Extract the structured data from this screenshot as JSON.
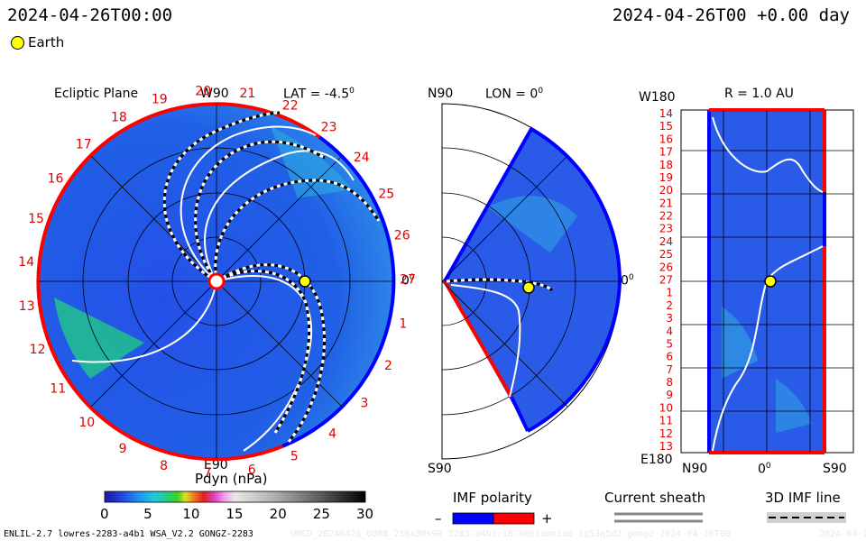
{
  "header": {
    "left_time": "2024-04-26T00:00",
    "right_time": "2024-04-26T00 +0.00 day",
    "legend_earth": "Earth"
  },
  "panels": {
    "ecliptic": {
      "title": "Ecliptic Plane",
      "lat": "LAT = -4.5",
      "deg_sup": "0",
      "top_label": "W90",
      "bottom_label": "E90",
      "zero_label": "0",
      "sector_numbers": [
        "1",
        "2",
        "3",
        "4",
        "5",
        "6",
        "7",
        "8",
        "9",
        "10",
        "11",
        "12",
        "13",
        "14",
        "15",
        "16",
        "17",
        "18",
        "19",
        "20",
        "21",
        "22",
        "23",
        "24",
        "25",
        "26",
        "27"
      ]
    },
    "meridional": {
      "top_left": "N90",
      "lon": "LON = 0",
      "deg_sup": "0",
      "bottom_left": "S90",
      "zero_label": "0"
    },
    "rplane": {
      "top_left": "W180",
      "title": "R = 1.0 AU",
      "bottom_left": "E180",
      "x_labels": [
        "N90",
        "0",
        "S90"
      ],
      "deg_sup": "0",
      "y_labels": [
        "14",
        "15",
        "16",
        "17",
        "18",
        "19",
        "20",
        "21",
        "22",
        "23",
        "24",
        "25",
        "26",
        "27",
        "1",
        "2",
        "3",
        "4",
        "5",
        "6",
        "7",
        "8",
        "9",
        "10",
        "11",
        "12",
        "13"
      ]
    }
  },
  "colorbar": {
    "title": "Pdyn (nPa)",
    "ticks": [
      "0",
      "5",
      "10",
      "15",
      "20",
      "25",
      "30"
    ],
    "colors": [
      "#1a1aa0",
      "#2040e0",
      "#2090f0",
      "#20c8e0",
      "#20d080",
      "#40d020",
      "#e0e020",
      "#f08020",
      "#e02020",
      "#e040c0",
      "#f0a0f0",
      "#e0e0e0",
      "#b0b0b0",
      "#808080",
      "#505050",
      "#202020",
      "#000000"
    ]
  },
  "legends": {
    "imf_title": "IMF polarity",
    "imf_minus": "–",
    "imf_plus": "+",
    "sheath_title": "Current sheath",
    "imf3d_title": "3D IMF line"
  },
  "footer": {
    "model": "ENLIL-2.7 lowres-2283-a4b1 WSA_V2.2 GONGZ-2283",
    "run_id": "UNCD_20240426_0808_256x30x90_2283-a4b1.16-nop1umn1ad-1g53q5d2.gongz-2024-04-26T00",
    "run_date": "2024-04-27"
  },
  "colors": {
    "positive": "#ff0000",
    "negative": "#0000ff",
    "earth": "#ffff00"
  }
}
